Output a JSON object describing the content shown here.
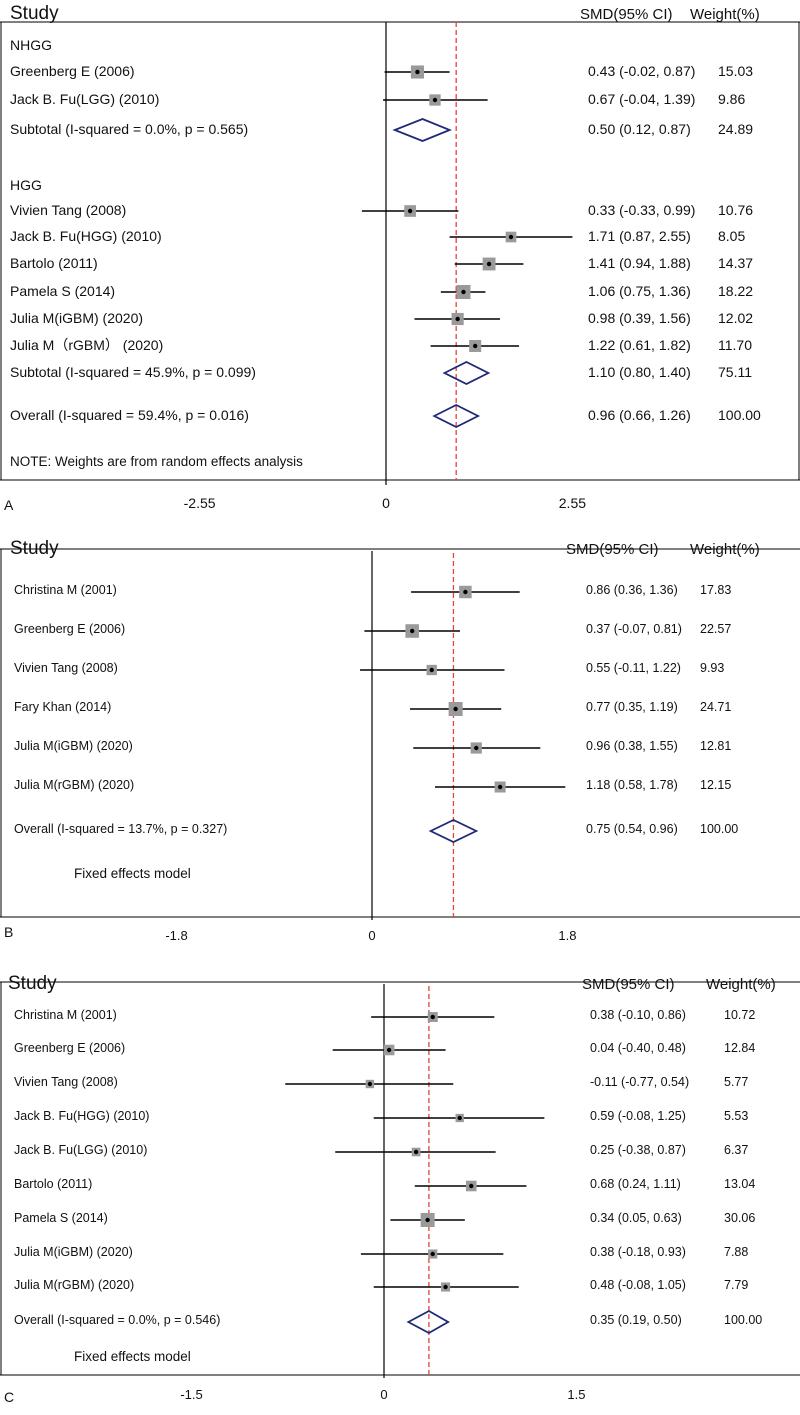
{
  "chart_data": [
    {
      "type": "forest",
      "panel_label": "A",
      "header": {
        "study": "Study",
        "smd": "SMD(95% CI)",
        "weight": "Weight(%)"
      },
      "xlim": [
        -4.45,
        4.45
      ],
      "ticks": [
        {
          "value": -2.55,
          "label": "-2.55"
        },
        {
          "value": 0,
          "label": "0"
        },
        {
          "value": 2.55,
          "label": "2.55"
        }
      ],
      "reference_line": 0,
      "overall_line": 0.96,
      "rows": [
        {
          "kind": "group",
          "label": "NHGG"
        },
        {
          "kind": "study",
          "label": "Greenberg E (2006)",
          "est": 0.43,
          "lo": -0.02,
          "hi": 0.87,
          "ci_text": "0.43 (-0.02, 0.87)",
          "weight": "15.03"
        },
        {
          "kind": "study",
          "label": "Jack B. Fu(LGG) (2010)",
          "est": 0.67,
          "lo": -0.04,
          "hi": 1.39,
          "ci_text": "0.67 (-0.04, 1.39)",
          "weight": "9.86"
        },
        {
          "kind": "subtotal",
          "label": "Subtotal  (I-squared = 0.0%, p = 0.565)",
          "est": 0.5,
          "lo": 0.12,
          "hi": 0.87,
          "ci_text": "0.50 (0.12, 0.87)",
          "weight": "24.89"
        },
        {
          "kind": "group",
          "label": "HGG"
        },
        {
          "kind": "study",
          "label": "Vivien Tang (2008)",
          "est": 0.33,
          "lo": -0.33,
          "hi": 0.99,
          "ci_text": "0.33 (-0.33, 0.99)",
          "weight": "10.76"
        },
        {
          "kind": "study",
          "label": "Jack B. Fu(HGG) (2010)",
          "est": 1.71,
          "lo": 0.87,
          "hi": 2.55,
          "ci_text": "1.71 (0.87, 2.55)",
          "weight": "8.05"
        },
        {
          "kind": "study",
          "label": "Bartolo (2011)",
          "est": 1.41,
          "lo": 0.94,
          "hi": 1.88,
          "ci_text": "1.41 (0.94, 1.88)",
          "weight": "14.37"
        },
        {
          "kind": "study",
          "label": "Pamela S (2014)",
          "est": 1.06,
          "lo": 0.75,
          "hi": 1.36,
          "ci_text": "1.06 (0.75, 1.36)",
          "weight": "18.22"
        },
        {
          "kind": "study",
          "label": "Julia M(iGBM) (2020)",
          "est": 0.98,
          "lo": 0.39,
          "hi": 1.56,
          "ci_text": "0.98 (0.39, 1.56)",
          "weight": "12.02"
        },
        {
          "kind": "study",
          "label": "Julia M（rGBM） (2020)",
          "est": 1.22,
          "lo": 0.61,
          "hi": 1.82,
          "ci_text": "1.22 (0.61, 1.82)",
          "weight": "11.70"
        },
        {
          "kind": "subtotal",
          "label": "Subtotal  (I-squared = 45.9%, p = 0.099)",
          "est": 1.1,
          "lo": 0.8,
          "hi": 1.4,
          "ci_text": "1.10 (0.80, 1.40)",
          "weight": "75.11"
        },
        {
          "kind": "overall",
          "label": "Overall  (I-squared = 59.4%, p = 0.016)",
          "est": 0.96,
          "lo": 0.66,
          "hi": 1.26,
          "ci_text": "0.96 (0.66, 1.26)",
          "weight": "100.00"
        }
      ],
      "note": "NOTE: Weights are from random effects analysis"
    },
    {
      "type": "forest",
      "panel_label": "B",
      "header": {
        "study": "Study",
        "smd": "SMD(95% CI)",
        "weight": "Weight(%)"
      },
      "xlim": [
        -2.8,
        2.8
      ],
      "ticks": [
        {
          "value": -1.8,
          "label": "-1.8"
        },
        {
          "value": 0,
          "label": "0"
        },
        {
          "value": 1.8,
          "label": "1.8"
        }
      ],
      "reference_line": 0,
      "overall_line": 0.75,
      "rows": [
        {
          "kind": "study",
          "label": "Christina M (2001)",
          "est": 0.86,
          "lo": 0.36,
          "hi": 1.36,
          "ci_text": "0.86 (0.36, 1.36)",
          "weight": "17.83"
        },
        {
          "kind": "study",
          "label": "Greenberg E (2006)",
          "est": 0.37,
          "lo": -0.07,
          "hi": 0.81,
          "ci_text": "0.37 (-0.07, 0.81)",
          "weight": "22.57"
        },
        {
          "kind": "study",
          "label": "Vivien Tang (2008)",
          "est": 0.55,
          "lo": -0.11,
          "hi": 1.22,
          "ci_text": "0.55 (-0.11, 1.22)",
          "weight": "9.93"
        },
        {
          "kind": "study",
          "label": "Fary Khan (2014)",
          "est": 0.77,
          "lo": 0.35,
          "hi": 1.19,
          "ci_text": "0.77 (0.35, 1.19)",
          "weight": "24.71"
        },
        {
          "kind": "study",
          "label": "Julia M(iGBM) (2020)",
          "est": 0.96,
          "lo": 0.38,
          "hi": 1.55,
          "ci_text": "0.96 (0.38, 1.55)",
          "weight": "12.81"
        },
        {
          "kind": "study",
          "label": "Julia M(rGBM) (2020)",
          "est": 1.18,
          "lo": 0.58,
          "hi": 1.78,
          "ci_text": "1.18 (0.58, 1.78)",
          "weight": "12.15"
        },
        {
          "kind": "overall",
          "label": "Overall  (I-squared = 13.7%, p = 0.327)",
          "est": 0.75,
          "lo": 0.54,
          "hi": 0.96,
          "ci_text": "0.75 (0.54, 0.96)",
          "weight": "100.00"
        }
      ],
      "note": "Fixed effects model"
    },
    {
      "type": "forest",
      "panel_label": "C",
      "header": {
        "study": "Study",
        "smd": "SMD(95% CI)",
        "weight": "Weight(%)"
      },
      "xlim": [
        -2.45,
        2.45
      ],
      "ticks": [
        {
          "value": -1.5,
          "label": "-1.5"
        },
        {
          "value": 0,
          "label": "0"
        },
        {
          "value": 1.5,
          "label": "1.5"
        }
      ],
      "reference_line": 0,
      "overall_line": 0.35,
      "rows": [
        {
          "kind": "study",
          "label": "Christina M (2001)",
          "est": 0.38,
          "lo": -0.1,
          "hi": 0.86,
          "ci_text": "0.38 (-0.10, 0.86)",
          "weight": "10.72"
        },
        {
          "kind": "study",
          "label": "Greenberg E (2006)",
          "est": 0.04,
          "lo": -0.4,
          "hi": 0.48,
          "ci_text": "0.04 (-0.40, 0.48)",
          "weight": "12.84"
        },
        {
          "kind": "study",
          "label": "Vivien Tang (2008)",
          "est": -0.11,
          "lo": -0.77,
          "hi": 0.54,
          "ci_text": "-0.11 (-0.77, 0.54)",
          "weight": "5.77"
        },
        {
          "kind": "study",
          "label": "Jack B. Fu(HGG) (2010)",
          "est": 0.59,
          "lo": -0.08,
          "hi": 1.25,
          "ci_text": "0.59 (-0.08, 1.25)",
          "weight": "5.53"
        },
        {
          "kind": "study",
          "label": "Jack B. Fu(LGG) (2010)",
          "est": 0.25,
          "lo": -0.38,
          "hi": 0.87,
          "ci_text": "0.25 (-0.38, 0.87)",
          "weight": "6.37"
        },
        {
          "kind": "study",
          "label": "Bartolo (2011)",
          "est": 0.68,
          "lo": 0.24,
          "hi": 1.11,
          "ci_text": "0.68 (0.24, 1.11)",
          "weight": "13.04"
        },
        {
          "kind": "study",
          "label": "Pamela S (2014)",
          "est": 0.34,
          "lo": 0.05,
          "hi": 0.63,
          "ci_text": "0.34 (0.05, 0.63)",
          "weight": "30.06"
        },
        {
          "kind": "study",
          "label": "Julia M(iGBM) (2020)",
          "est": 0.38,
          "lo": -0.18,
          "hi": 0.93,
          "ci_text": "0.38 (-0.18, 0.93)",
          "weight": "7.88"
        },
        {
          "kind": "study",
          "label": "Julia M(rGBM) (2020)",
          "est": 0.48,
          "lo": -0.08,
          "hi": 1.05,
          "ci_text": "0.48 (-0.08, 1.05)",
          "weight": "7.79"
        },
        {
          "kind": "overall",
          "label": "Overall  (I-squared = 0.0%, p = 0.546)",
          "est": 0.35,
          "lo": 0.19,
          "hi": 0.5,
          "ci_text": "0.35 (0.19, 0.50)",
          "weight": "100.00"
        }
      ],
      "note": "Fixed effects model"
    }
  ],
  "colors": {
    "axis": "#000000",
    "ci_line": "#000000",
    "weight_box": "#9a9a9a",
    "diamond": "#1f2a78",
    "overall_line": "#e0443a"
  }
}
